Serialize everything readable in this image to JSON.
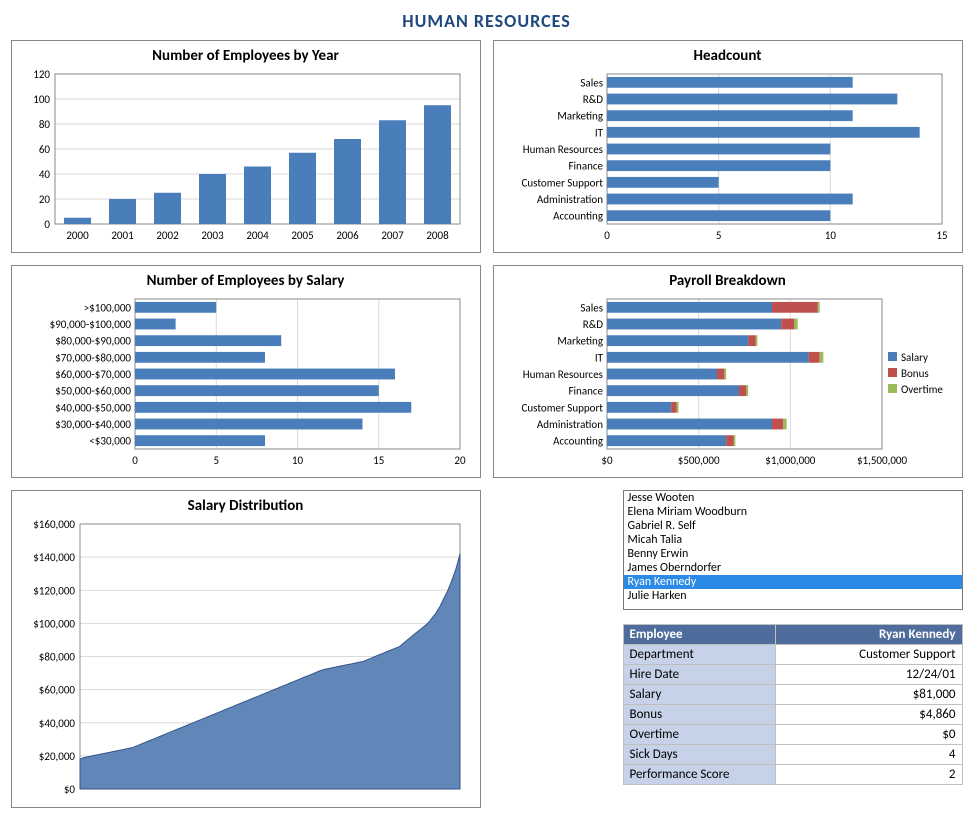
{
  "page_title": "HUMAN RESOURCES",
  "colors": {
    "bar": "#4a7ebb",
    "bonus": "#c0504d",
    "overtime": "#9bbb59",
    "border": "#888888",
    "grid": "#d9d9d9",
    "area_fill": "#6187b9",
    "area_line": "#34558a",
    "title": "#1f497d",
    "list_sel": "#2b8ae6",
    "table_header": "#4f6d9c",
    "table_label": "#c5d2e8"
  },
  "employees_by_year": {
    "title": "Number of Employees by Year",
    "type": "bar",
    "categories": [
      "2000",
      "2001",
      "2002",
      "2003",
      "2004",
      "2005",
      "2006",
      "2007",
      "2008"
    ],
    "values": [
      5,
      20,
      25,
      40,
      46,
      57,
      68,
      83,
      95
    ],
    "ylim": [
      0,
      120
    ],
    "ytick_step": 20
  },
  "headcount": {
    "title": "Headcount",
    "type": "hbar",
    "categories": [
      "Sales",
      "R&D",
      "Marketing",
      "IT",
      "Human Resources",
      "Finance",
      "Customer Support",
      "Administration",
      "Accounting"
    ],
    "values": [
      11,
      13,
      11,
      14,
      10,
      10,
      5,
      11,
      10
    ],
    "xlim": [
      0,
      15
    ],
    "xtick_step": 5
  },
  "employees_by_salary": {
    "title": "Number of Employees by Salary",
    "type": "hbar",
    "categories": [
      ">$100,000",
      "$90,000-$100,000",
      "$80,000-$90,000",
      "$70,000-$80,000",
      "$60,000-$70,000",
      "$50,000-$60,000",
      "$40,000-$50,000",
      "$30,000-$40,000",
      "<$30,000"
    ],
    "values": [
      5,
      2.5,
      9,
      8,
      16,
      15,
      17,
      14,
      8
    ],
    "xlim": [
      0,
      20
    ],
    "xtick_step": 5
  },
  "payroll": {
    "title": "Payroll Breakdown",
    "type": "hbar-stacked",
    "categories": [
      "Sales",
      "R&D",
      "Marketing",
      "IT",
      "Human Resources",
      "Finance",
      "Customer Support",
      "Administration",
      "Accounting"
    ],
    "series": [
      {
        "name": "Salary",
        "color": "#4a7ebb",
        "values": [
          900000,
          950000,
          770000,
          1100000,
          600000,
          720000,
          350000,
          900000,
          650000
        ]
      },
      {
        "name": "Bonus",
        "color": "#c0504d",
        "values": [
          250000,
          70000,
          40000,
          60000,
          40000,
          40000,
          30000,
          60000,
          40000
        ]
      },
      {
        "name": "Overtime",
        "color": "#9bbb59",
        "values": [
          10000,
          20000,
          10000,
          20000,
          10000,
          10000,
          10000,
          20000,
          10000
        ]
      }
    ],
    "xlim": [
      0,
      1500000
    ],
    "xticks": [
      0,
      500000,
      1000000,
      1500000
    ],
    "xtick_labels": [
      "$0",
      "$500,000",
      "$1,000,000",
      "$1,500,000"
    ],
    "legend": [
      "Salary",
      "Bonus",
      "Overtime"
    ]
  },
  "salary_dist": {
    "title": "Salary Distribution",
    "type": "area",
    "ylim": [
      0,
      160000
    ],
    "ytick_step": 20000,
    "ytick_labels": [
      "$0",
      "$20,000",
      "$40,000",
      "$60,000",
      "$80,000",
      "$100,000",
      "$120,000",
      "$140,000",
      "$160,000"
    ],
    "n_points": 95,
    "values": [
      18000,
      19000,
      19500,
      20000,
      20500,
      21000,
      21500,
      22000,
      22500,
      23000,
      23500,
      24000,
      24500,
      25000,
      26000,
      27000,
      28000,
      29000,
      30000,
      31000,
      32000,
      33000,
      34000,
      35000,
      36000,
      37000,
      38000,
      39000,
      40000,
      41000,
      42000,
      43000,
      44000,
      45000,
      46000,
      47000,
      48000,
      49000,
      50000,
      51000,
      52000,
      53000,
      54000,
      55000,
      56000,
      57000,
      58000,
      59000,
      60000,
      61000,
      62000,
      63000,
      64000,
      65000,
      66000,
      67000,
      68000,
      69000,
      70000,
      71000,
      72000,
      72500,
      73000,
      73500,
      74000,
      74500,
      75000,
      75500,
      76000,
      76500,
      77000,
      78000,
      79000,
      80000,
      81000,
      82000,
      83000,
      84000,
      85000,
      86000,
      88000,
      90000,
      92000,
      94000,
      96000,
      98000,
      100000,
      103000,
      106000,
      110000,
      115000,
      120000,
      126000,
      133000,
      142000
    ]
  },
  "employee_list": {
    "items": [
      "Jesse Wooten",
      "Elena Miriam Woodburn",
      "Gabriel R. Self",
      "Micah Talia",
      "Benny Erwin",
      "James Oberndorfer",
      "Ryan Kennedy",
      "Julie Harken"
    ],
    "selected": "Ryan Kennedy"
  },
  "employee_detail": {
    "header_label": "Employee",
    "header_value": "Ryan Kennedy",
    "rows": [
      {
        "label": "Department",
        "value": "Customer Support"
      },
      {
        "label": "Hire Date",
        "value": "12/24/01"
      },
      {
        "label": "Salary",
        "value": "$81,000"
      },
      {
        "label": "Bonus",
        "value": "$4,860"
      },
      {
        "label": "Overtime",
        "value": "$0"
      },
      {
        "label": "Sick Days",
        "value": "4"
      },
      {
        "label": "Performance Score",
        "value": "2"
      }
    ]
  }
}
